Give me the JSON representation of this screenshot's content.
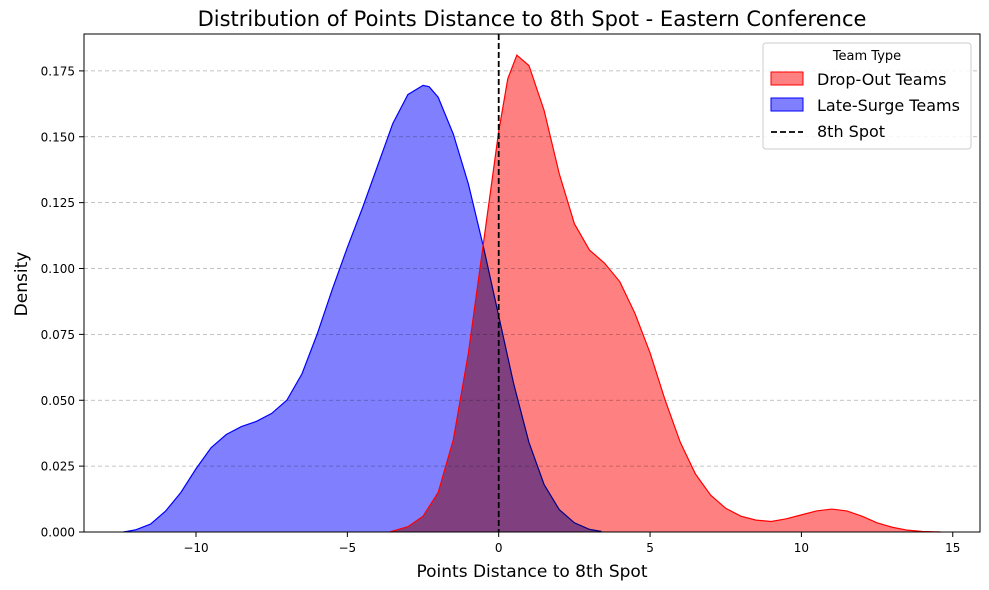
{
  "chart_data": {
    "type": "area",
    "title": "Distribution of Points Distance to 8th Spot - Eastern Conference",
    "xlabel": "Points Distance to 8th Spot",
    "ylabel": "Density",
    "xlim": [
      -13.7,
      15.9
    ],
    "ylim": [
      0,
      0.189
    ],
    "xticks": [
      -10,
      -5,
      0,
      5,
      10,
      15
    ],
    "xtick_labels": [
      "−10",
      "−5",
      "0",
      "5",
      "10",
      "15"
    ],
    "yticks": [
      0,
      0.025,
      0.05,
      0.075,
      0.1,
      0.125,
      0.15,
      0.175
    ],
    "ytick_labels": [
      "0.000",
      "0.025",
      "0.050",
      "0.075",
      "0.100",
      "0.125",
      "0.150",
      "0.175"
    ],
    "grid": "y-dashed",
    "legend": {
      "title": "Team Type",
      "placement": "top-right",
      "entries": [
        "Drop-Out Teams",
        "Late-Surge Teams",
        "8th Spot"
      ]
    },
    "reference_line": {
      "x": 0,
      "label": "8th Spot",
      "style": "dashed",
      "color": "#000000"
    },
    "series": [
      {
        "name": "Late-Surge Teams",
        "color": "#0000ff",
        "fill": "#8080ff",
        "x": [
          -12.4,
          -12.0,
          -11.5,
          -11.0,
          -10.5,
          -10.0,
          -9.5,
          -9.0,
          -8.5,
          -8.0,
          -7.5,
          -7.0,
          -6.5,
          -6.0,
          -5.5,
          -5.0,
          -4.5,
          -4.0,
          -3.5,
          -3.0,
          -2.5,
          -2.3,
          -2.0,
          -1.5,
          -1.0,
          -0.5,
          0.0,
          0.5,
          1.0,
          1.5,
          2.0,
          2.5,
          3.0,
          3.4
        ],
        "y": [
          0.0,
          0.0008,
          0.003,
          0.008,
          0.015,
          0.024,
          0.032,
          0.037,
          0.04,
          0.042,
          0.045,
          0.05,
          0.06,
          0.075,
          0.092,
          0.108,
          0.123,
          0.139,
          0.155,
          0.166,
          0.1695,
          0.169,
          0.165,
          0.151,
          0.132,
          0.108,
          0.082,
          0.056,
          0.034,
          0.018,
          0.0085,
          0.0035,
          0.001,
          0.0002
        ]
      },
      {
        "name": "Drop-Out Teams",
        "color": "#ff0000",
        "fill": "#ff8080",
        "x": [
          -3.6,
          -3.0,
          -2.5,
          -2.0,
          -1.5,
          -1.0,
          -0.5,
          0.0,
          0.3,
          0.6,
          1.0,
          1.5,
          2.0,
          2.5,
          3.0,
          3.5,
          4.0,
          4.5,
          5.0,
          5.5,
          6.0,
          6.5,
          7.0,
          7.5,
          8.0,
          8.5,
          9.0,
          9.5,
          10.0,
          10.5,
          11.0,
          11.5,
          12.0,
          12.5,
          13.0,
          13.5,
          14.0,
          14.6
        ],
        "y": [
          0.0,
          0.002,
          0.006,
          0.015,
          0.035,
          0.068,
          0.11,
          0.152,
          0.172,
          0.181,
          0.177,
          0.16,
          0.136,
          0.117,
          0.107,
          0.102,
          0.095,
          0.083,
          0.068,
          0.05,
          0.034,
          0.022,
          0.014,
          0.009,
          0.006,
          0.0045,
          0.004,
          0.005,
          0.0065,
          0.008,
          0.0087,
          0.008,
          0.006,
          0.0035,
          0.0018,
          0.0007,
          0.0002,
          0.0
        ]
      }
    ]
  }
}
